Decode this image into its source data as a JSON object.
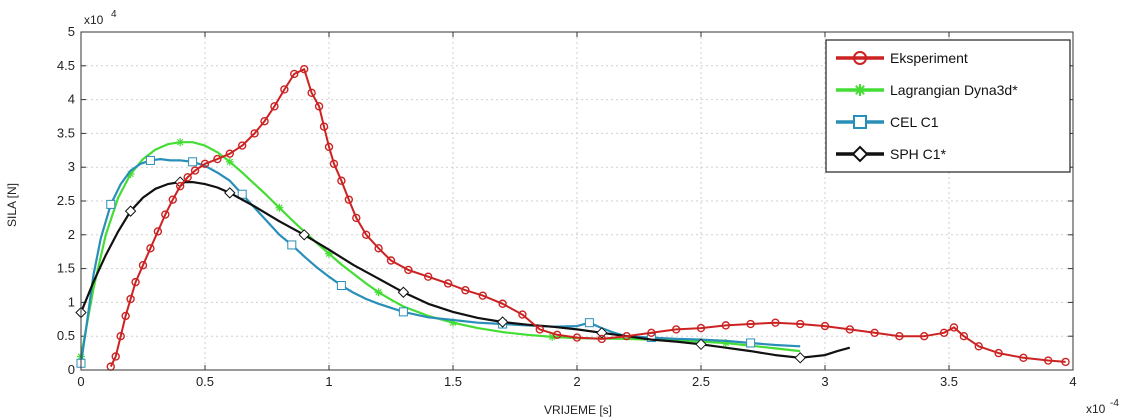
{
  "chart_data": {
    "type": "line",
    "xlabel": "VRIJEME [s]",
    "ylabel": "SILA [N]",
    "x_multiplier_label": "x10",
    "x_multiplier_exp": "-4",
    "y_multiplier_label": "x10",
    "y_multiplier_exp": "4",
    "xlim": [
      0,
      4
    ],
    "ylim": [
      0,
      5
    ],
    "x_ticks": [
      "0",
      "0.5",
      "1",
      "1.5",
      "2",
      "2.5",
      "3",
      "3.5",
      "4"
    ],
    "y_ticks": [
      "0",
      "0.5",
      "1",
      "1.5",
      "2",
      "2.5",
      "3",
      "3.5",
      "4",
      "4.5",
      "5"
    ],
    "grid": true,
    "legend_position": "top-right",
    "series": [
      {
        "name": "Eksperiment",
        "color": "#cc2222",
        "marker": "circle",
        "x": [
          0.12,
          0.14,
          0.16,
          0.18,
          0.2,
          0.22,
          0.25,
          0.28,
          0.31,
          0.34,
          0.37,
          0.4,
          0.43,
          0.46,
          0.5,
          0.55,
          0.6,
          0.65,
          0.7,
          0.74,
          0.78,
          0.82,
          0.86,
          0.9,
          0.93,
          0.96,
          0.98,
          1.0,
          1.02,
          1.05,
          1.08,
          1.11,
          1.15,
          1.2,
          1.25,
          1.32,
          1.4,
          1.48,
          1.55,
          1.62,
          1.7,
          1.78,
          1.85,
          1.92,
          2.0,
          2.1,
          2.2,
          2.3,
          2.4,
          2.5,
          2.6,
          2.7,
          2.8,
          2.9,
          3.0,
          3.1,
          3.2,
          3.3,
          3.4,
          3.48,
          3.52,
          3.56,
          3.62,
          3.7,
          3.8,
          3.9,
          3.97
        ],
        "y": [
          0.05,
          0.2,
          0.5,
          0.8,
          1.05,
          1.3,
          1.55,
          1.8,
          2.05,
          2.3,
          2.52,
          2.72,
          2.85,
          2.95,
          3.05,
          3.12,
          3.2,
          3.32,
          3.5,
          3.68,
          3.9,
          4.15,
          4.38,
          4.45,
          4.1,
          3.9,
          3.6,
          3.3,
          3.05,
          2.8,
          2.52,
          2.25,
          2.0,
          1.8,
          1.62,
          1.48,
          1.38,
          1.28,
          1.18,
          1.1,
          0.98,
          0.82,
          0.6,
          0.52,
          0.48,
          0.46,
          0.5,
          0.55,
          0.6,
          0.62,
          0.66,
          0.68,
          0.7,
          0.68,
          0.65,
          0.6,
          0.55,
          0.5,
          0.5,
          0.55,
          0.63,
          0.5,
          0.35,
          0.25,
          0.18,
          0.14,
          0.12
        ]
      },
      {
        "name": "Lagrangian Dyna3d*",
        "color": "#44dd33",
        "marker": "star",
        "x": [
          0.0,
          0.05,
          0.1,
          0.15,
          0.2,
          0.25,
          0.3,
          0.35,
          0.4,
          0.45,
          0.5,
          0.55,
          0.6,
          0.65,
          0.7,
          0.75,
          0.8,
          0.85,
          0.9,
          0.95,
          1.0,
          1.05,
          1.1,
          1.15,
          1.2,
          1.25,
          1.3,
          1.4,
          1.5,
          1.6,
          1.7,
          1.8,
          1.9,
          2.0,
          2.2,
          2.4,
          2.6,
          2.8,
          2.9
        ],
        "y": [
          0.2,
          1.2,
          2.0,
          2.55,
          2.9,
          3.12,
          3.26,
          3.34,
          3.37,
          3.37,
          3.32,
          3.22,
          3.08,
          2.92,
          2.75,
          2.58,
          2.4,
          2.22,
          2.05,
          1.88,
          1.72,
          1.56,
          1.42,
          1.28,
          1.15,
          1.04,
          0.94,
          0.8,
          0.7,
          0.62,
          0.56,
          0.52,
          0.49,
          0.47,
          0.46,
          0.44,
          0.4,
          0.32,
          0.28
        ]
      },
      {
        "name": "CEL C1",
        "color": "#2a8fb8",
        "marker": "square",
        "x": [
          0.0,
          0.02,
          0.05,
          0.08,
          0.12,
          0.16,
          0.2,
          0.24,
          0.28,
          0.32,
          0.36,
          0.4,
          0.45,
          0.5,
          0.55,
          0.6,
          0.65,
          0.7,
          0.75,
          0.8,
          0.85,
          0.9,
          0.95,
          1.0,
          1.05,
          1.1,
          1.15,
          1.2,
          1.3,
          1.4,
          1.5,
          1.6,
          1.7,
          1.8,
          1.9,
          2.0,
          2.05,
          2.1,
          2.15,
          2.2,
          2.3,
          2.4,
          2.5,
          2.6,
          2.7,
          2.8,
          2.9
        ],
        "y": [
          0.1,
          0.6,
          1.4,
          1.95,
          2.45,
          2.75,
          2.95,
          3.05,
          3.1,
          3.12,
          3.1,
          3.1,
          3.08,
          3.02,
          2.92,
          2.8,
          2.6,
          2.4,
          2.2,
          2.0,
          1.85,
          1.68,
          1.52,
          1.38,
          1.25,
          1.14,
          1.05,
          0.98,
          0.86,
          0.78,
          0.74,
          0.7,
          0.68,
          0.66,
          0.64,
          0.65,
          0.7,
          0.62,
          0.55,
          0.5,
          0.48,
          0.46,
          0.45,
          0.43,
          0.4,
          0.37,
          0.35
        ]
      },
      {
        "name": "SPH C1*",
        "color": "#111111",
        "marker": "diamond",
        "x": [
          0.0,
          0.05,
          0.1,
          0.15,
          0.2,
          0.25,
          0.3,
          0.35,
          0.4,
          0.45,
          0.5,
          0.55,
          0.6,
          0.65,
          0.7,
          0.8,
          0.9,
          1.0,
          1.1,
          1.2,
          1.3,
          1.4,
          1.5,
          1.6,
          1.7,
          1.8,
          1.9,
          2.0,
          2.1,
          2.2,
          2.3,
          2.4,
          2.5,
          2.6,
          2.7,
          2.8,
          2.9,
          3.0,
          3.05,
          3.1
        ],
        "y": [
          0.85,
          1.3,
          1.7,
          2.05,
          2.35,
          2.55,
          2.68,
          2.75,
          2.78,
          2.78,
          2.75,
          2.7,
          2.62,
          2.52,
          2.42,
          2.2,
          2.0,
          1.78,
          1.55,
          1.35,
          1.15,
          0.98,
          0.86,
          0.77,
          0.71,
          0.67,
          0.64,
          0.6,
          0.55,
          0.5,
          0.45,
          0.42,
          0.38,
          0.33,
          0.28,
          0.22,
          0.18,
          0.22,
          0.28,
          0.33
        ]
      }
    ]
  }
}
